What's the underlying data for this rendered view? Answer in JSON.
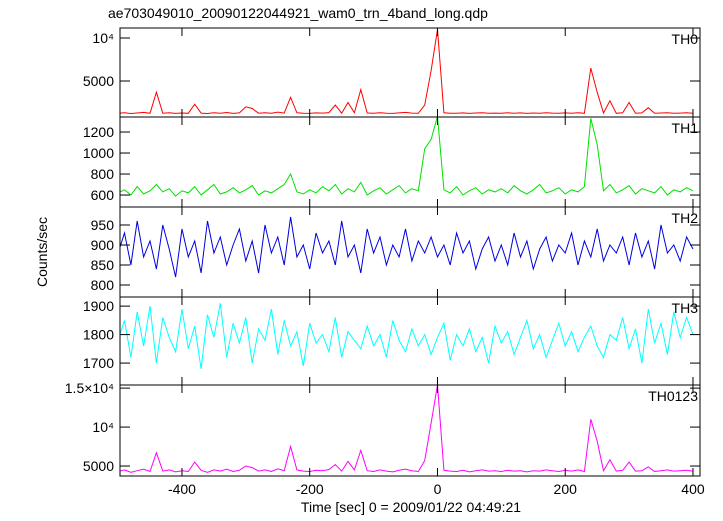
{
  "chart_data": {
    "type": "line",
    "title": "ae703049010_20090122044921_wam0_trn_4band_long.qdp",
    "xlabel": "Time [sec] 0 = 2009/01/22 04:49:21",
    "ylabel": "Counts/sec",
    "xlim": [
      -497,
      411
    ],
    "xticks": [
      -400,
      -200,
      0,
      200,
      400
    ],
    "x": [
      -500,
      -490,
      -480,
      -470,
      -460,
      -450,
      -440,
      -430,
      -420,
      -410,
      -400,
      -390,
      -380,
      -370,
      -360,
      -350,
      -340,
      -330,
      -320,
      -310,
      -300,
      -290,
      -280,
      -270,
      -260,
      -250,
      -240,
      -230,
      -220,
      -210,
      -200,
      -190,
      -180,
      -170,
      -160,
      -150,
      -140,
      -130,
      -120,
      -110,
      -100,
      -90,
      -80,
      -70,
      -60,
      -50,
      -40,
      -30,
      -20,
      -10,
      0,
      10,
      20,
      30,
      40,
      50,
      60,
      70,
      80,
      90,
      100,
      110,
      120,
      130,
      140,
      150,
      160,
      170,
      180,
      190,
      200,
      210,
      220,
      230,
      240,
      250,
      260,
      270,
      280,
      290,
      300,
      310,
      320,
      330,
      340,
      350,
      360,
      370,
      380,
      390,
      400
    ],
    "series": [
      {
        "name": "TH0",
        "color": "#ff0000",
        "ylim": [
          814,
          11163
        ],
        "yticks": [
          {
            "value": 5000,
            "label": "5000"
          },
          {
            "value": 10000,
            "label": "10⁴"
          }
        ],
        "values": [
          1250,
          1300,
          1220,
          1280,
          1350,
          1240,
          3700,
          1260,
          1310,
          1230,
          1280,
          1250,
          2300,
          1270,
          1220,
          1300,
          1260,
          1340,
          1230,
          1290,
          2000,
          1800,
          1260,
          1310,
          1240,
          1380,
          1270,
          3100,
          1300,
          1250,
          1230,
          1290,
          1270,
          1320,
          2200,
          1260,
          2500,
          1300,
          4000,
          1280,
          1240,
          1310,
          1260,
          1230,
          1290,
          1350,
          1270,
          1240,
          2200,
          6200,
          11000,
          1300,
          1260,
          1240,
          1290,
          1230,
          1280,
          1310,
          1250,
          1270,
          1240,
          1300,
          1260,
          1290,
          1230,
          1280,
          1250,
          1310,
          1270,
          1240,
          1290,
          1260,
          1300,
          1240,
          6500,
          3700,
          1280,
          2700,
          1250,
          1300,
          2500,
          1260,
          1290,
          1900,
          1240,
          1280,
          1310,
          1250,
          1270,
          1300,
          1260
        ]
      },
      {
        "name": "TH1",
        "color": "#00e000",
        "ylim": [
          486,
          1343
        ],
        "yticks": [
          600,
          800,
          1000,
          1200
        ],
        "values": [
          620,
          650,
          600,
          680,
          610,
          640,
          700,
          630,
          660,
          590,
          640,
          620,
          680,
          600,
          650,
          700,
          610,
          630,
          670,
          620,
          650,
          690,
          600,
          640,
          620,
          660,
          700,
          800,
          630,
          610,
          650,
          620,
          680,
          640,
          700,
          610,
          660,
          630,
          720,
          600,
          640,
          670,
          610,
          650,
          690,
          620,
          660,
          640,
          1040,
          1130,
          1350,
          650,
          620,
          680,
          600,
          640,
          670,
          610,
          650,
          630,
          660,
          620,
          690,
          640,
          610,
          650,
          700,
          620,
          640,
          670,
          610,
          650,
          630,
          680,
          1330,
          1080,
          640,
          700,
          620,
          650,
          690,
          610,
          660,
          640,
          620,
          680,
          600,
          650,
          630,
          670,
          640
        ]
      },
      {
        "name": "TH2",
        "color": "#0000e0",
        "ylim": [
          770,
          995
        ],
        "yticks": [
          800,
          850,
          900,
          950
        ],
        "values": [
          880,
          930,
          850,
          960,
          870,
          910,
          840,
          950,
          890,
          820,
          940,
          870,
          910,
          830,
          960,
          880,
          920,
          850,
          900,
          940,
          860,
          910,
          830,
          950,
          880,
          920,
          850,
          970,
          870,
          900,
          840,
          930,
          880,
          910,
          850,
          960,
          870,
          900,
          830,
          940,
          880,
          920,
          850,
          900,
          870,
          940,
          860,
          910,
          880,
          920,
          870,
          900,
          850,
          930,
          880,
          910,
          840,
          890,
          920,
          860,
          900,
          850,
          930,
          870,
          910,
          840,
          890,
          920,
          860,
          900,
          880,
          930,
          850,
          910,
          870,
          940,
          860,
          900,
          880,
          920,
          850,
          930,
          870,
          910,
          840,
          950,
          880,
          900,
          860,
          920,
          890
        ]
      },
      {
        "name": "TH3",
        "color": "#00ffff",
        "ylim": [
          1623,
          1932
        ],
        "yticks": [
          1700,
          1800,
          1900
        ],
        "values": [
          1780,
          1850,
          1720,
          1880,
          1760,
          1900,
          1700,
          1860,
          1790,
          1740,
          1890,
          1750,
          1830,
          1680,
          1870,
          1790,
          1910,
          1720,
          1840,
          1770,
          1860,
          1700,
          1820,
          1780,
          1890,
          1730,
          1850,
          1760,
          1810,
          1690,
          1840,
          1770,
          1800,
          1740,
          1860,
          1720,
          1810,
          1780,
          1750,
          1830,
          1760,
          1800,
          1720,
          1850,
          1780,
          1740,
          1820,
          1760,
          1800,
          1730,
          1790,
          1840,
          1710,
          1800,
          1760,
          1820,
          1740,
          1790,
          1700,
          1830,
          1770,
          1810,
          1730,
          1790,
          1850,
          1750,
          1800,
          1720,
          1780,
          1840,
          1760,
          1810,
          1740,
          1790,
          1830,
          1760,
          1720,
          1800,
          1780,
          1860,
          1750,
          1820,
          1700,
          1890,
          1770,
          1840,
          1730,
          1880,
          1790,
          1860,
          1800
        ]
      },
      {
        "name": "TH0123",
        "color": "#ff00ff",
        "ylim": [
          3720,
          15400
        ],
        "yticks": [
          {
            "value": 5000,
            "label": "5000"
          },
          {
            "value": 10000,
            "label": "10⁴"
          },
          {
            "value": 15000,
            "label": "1.5×10⁴"
          }
        ],
        "values": [
          4300,
          4500,
          4200,
          4400,
          4600,
          4300,
          6700,
          4350,
          4500,
          4250,
          4400,
          4300,
          5500,
          4450,
          4200,
          4500,
          4350,
          4600,
          4300,
          4450,
          5000,
          4800,
          4350,
          4500,
          4300,
          4650,
          4400,
          7500,
          4500,
          4350,
          4300,
          4450,
          4400,
          4550,
          5200,
          4350,
          5600,
          4500,
          7000,
          4400,
          4300,
          4500,
          4350,
          4250,
          4450,
          4600,
          4400,
          4300,
          5700,
          10500,
          15400,
          4450,
          4350,
          4300,
          4450,
          4250,
          4400,
          4500,
          4350,
          4400,
          4300,
          4450,
          4350,
          4400,
          4250,
          4400,
          4350,
          4500,
          4400,
          4300,
          4450,
          4350,
          4500,
          4300,
          11000,
          8200,
          4400,
          5800,
          4350,
          4450,
          5500,
          4350,
          4400,
          4900,
          4300,
          4400,
          4500,
          4350,
          4400,
          4450,
          4350
        ]
      }
    ]
  }
}
